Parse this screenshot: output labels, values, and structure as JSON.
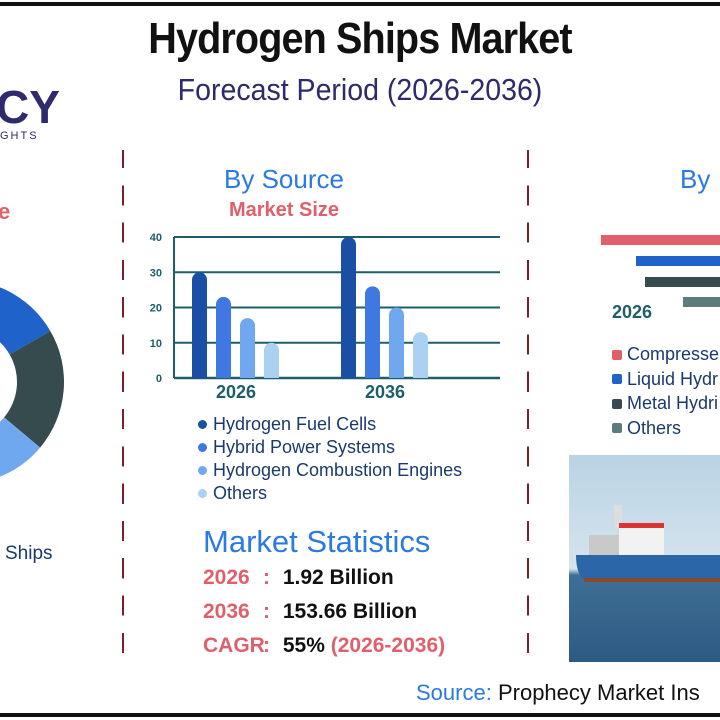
{
  "header": {
    "title": "Hydrogen Ships Market",
    "subtitle": "Forecast Period (2026-2036)"
  },
  "logo": {
    "main": "CY",
    "tagline": "GHTS"
  },
  "left_panel": {
    "heading_fragment": "e",
    "label_fragment": "Ships",
    "donut_colors": [
      "#1f62c9",
      "#354b4e",
      "#6fa8ef"
    ]
  },
  "chart_data": {
    "type": "bar",
    "title": "By Source",
    "subtitle": "Market Size",
    "categories": [
      "2026",
      "2036"
    ],
    "ylim": [
      0,
      40
    ],
    "yticks": [
      "0",
      "10",
      "20",
      "30",
      "40"
    ],
    "grid": true,
    "legend_placement": "bottom",
    "series": [
      {
        "name": "Hydrogen Fuel Cells",
        "values": [
          30,
          40
        ],
        "color": "#1a4fa6"
      },
      {
        "name": "Hybrid Power Systems",
        "values": [
          23,
          26
        ],
        "color": "#3f78e0"
      },
      {
        "name": "Hydrogen Combustion Engines",
        "values": [
          17,
          20
        ],
        "color": "#6fa8ef"
      },
      {
        "name": "Others",
        "values": [
          10,
          13
        ],
        "color": "#a9d1f2"
      }
    ]
  },
  "stats": {
    "title": "Market Statistics",
    "rows": [
      {
        "key": "2026",
        "sep": ":",
        "value": "1.92 Billion"
      },
      {
        "key": "2036",
        "sep": ":",
        "value": "153.66 Billion"
      },
      {
        "key": "CAGR",
        "sep": ":",
        "value": "55%",
        "extra": "(2026-2036)"
      }
    ]
  },
  "right_panel": {
    "heading_fragment": "By",
    "year_label": "2026",
    "legend": [
      {
        "label": "Compresse",
        "color": "#e0606a"
      },
      {
        "label": "Liquid Hydr",
        "color": "#1f62c9"
      },
      {
        "label": "Metal Hydri",
        "color": "#354b4e"
      },
      {
        "label": "Others",
        "color": "#5d7a7c"
      }
    ]
  },
  "footer": {
    "source_label": "Source:",
    "source_value": "Prophecy Market Ins"
  }
}
